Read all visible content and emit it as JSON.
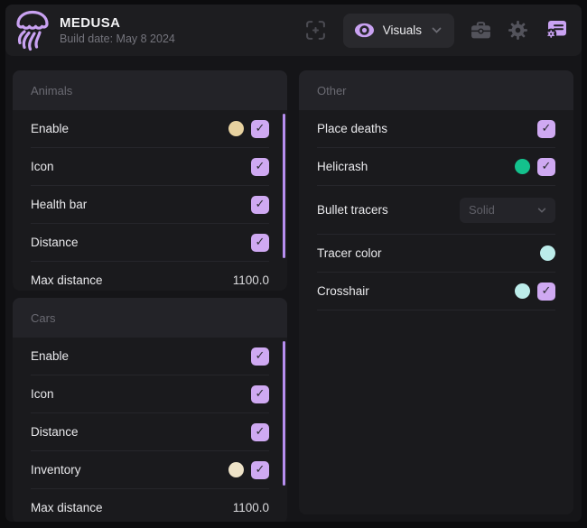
{
  "window": {
    "title": "MEDUSA",
    "subtitle": "Build date: May 8 2024"
  },
  "header": {
    "dropdown_label": "Visuals",
    "icons": [
      "focus-scan-icon",
      "eye-icon",
      "briefcase-icon",
      "gear-icon",
      "script-license-icon"
    ]
  },
  "colors": {
    "accent_purple": "#c9a2f2",
    "checkbox_purple": "#cfa9f2",
    "scrollbar_purple": "#b78ef0",
    "swatch_tan": "#e8d2a0",
    "swatch_cream": "#eee3c8",
    "swatch_green": "#14c18d",
    "swatch_cyan": "#bcecea"
  },
  "panels": [
    {
      "title": "Animals",
      "scrollbar": true,
      "rows": [
        {
          "label": "Enable",
          "controls": [
            {
              "type": "color",
              "color": "#e8d2a0"
            },
            {
              "type": "checkbox",
              "checked": true
            }
          ]
        },
        {
          "label": "Icon",
          "controls": [
            {
              "type": "checkbox",
              "checked": true
            }
          ]
        },
        {
          "label": "Health bar",
          "controls": [
            {
              "type": "checkbox",
              "checked": true
            }
          ]
        },
        {
          "label": "Distance",
          "controls": [
            {
              "type": "checkbox",
              "checked": true
            }
          ]
        },
        {
          "label": "Max distance",
          "controls": [
            {
              "type": "value",
              "value": "1100.0"
            }
          ]
        }
      ]
    },
    {
      "title": "Cars",
      "scrollbar": true,
      "rows": [
        {
          "label": "Enable",
          "controls": [
            {
              "type": "checkbox",
              "checked": true
            }
          ]
        },
        {
          "label": "Icon",
          "controls": [
            {
              "type": "checkbox",
              "checked": true
            }
          ]
        },
        {
          "label": "Distance",
          "controls": [
            {
              "type": "checkbox",
              "checked": true
            }
          ]
        },
        {
          "label": "Inventory",
          "controls": [
            {
              "type": "color",
              "color": "#eee3c8"
            },
            {
              "type": "checkbox",
              "checked": true
            }
          ]
        },
        {
          "label": "Max distance",
          "controls": [
            {
              "type": "value",
              "value": "1100.0"
            }
          ]
        }
      ]
    },
    {
      "title": "Other",
      "scrollbar": false,
      "rows": [
        {
          "label": "Place deaths",
          "controls": [
            {
              "type": "checkbox",
              "checked": true
            }
          ]
        },
        {
          "label": "Helicrash",
          "controls": [
            {
              "type": "color",
              "color": "#14c18d"
            },
            {
              "type": "checkbox",
              "checked": true
            }
          ]
        },
        {
          "label": "Bullet tracers",
          "tall": true,
          "controls": [
            {
              "type": "select",
              "value": "Solid"
            }
          ]
        },
        {
          "label": "Tracer color",
          "controls": [
            {
              "type": "color",
              "color": "#bcecea"
            }
          ]
        },
        {
          "label": "Crosshair",
          "controls": [
            {
              "type": "color",
              "color": "#bcecea"
            },
            {
              "type": "checkbox",
              "checked": true
            }
          ]
        }
      ]
    }
  ]
}
